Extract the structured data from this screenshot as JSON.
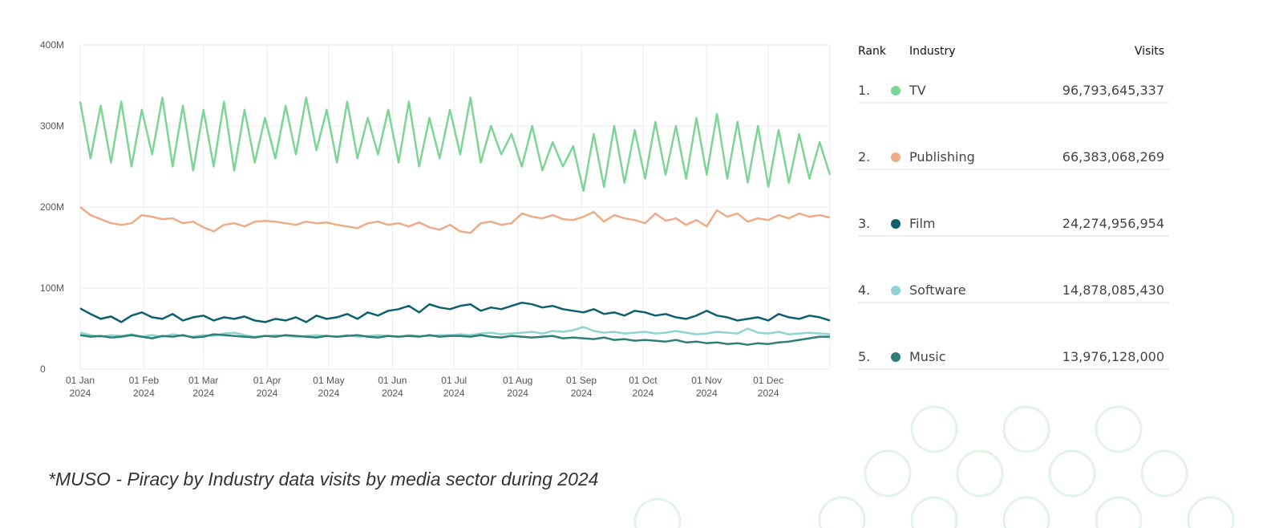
{
  "chart_data": {
    "type": "line",
    "x": [
      "2024-01-01",
      "2024-01-06",
      "2024-01-11",
      "2024-01-16",
      "2024-01-21",
      "2024-01-26",
      "2024-01-31",
      "2024-02-05",
      "2024-02-10",
      "2024-02-15",
      "2024-02-20",
      "2024-02-25",
      "2024-03-01",
      "2024-03-06",
      "2024-03-11",
      "2024-03-16",
      "2024-03-21",
      "2024-03-26",
      "2024-03-31",
      "2024-04-05",
      "2024-04-10",
      "2024-04-15",
      "2024-04-20",
      "2024-04-25",
      "2024-04-30",
      "2024-05-05",
      "2024-05-10",
      "2024-05-15",
      "2024-05-20",
      "2024-05-25",
      "2024-05-30",
      "2024-06-04",
      "2024-06-09",
      "2024-06-14",
      "2024-06-19",
      "2024-06-24",
      "2024-06-29",
      "2024-07-04",
      "2024-07-09",
      "2024-07-14",
      "2024-07-19",
      "2024-07-24",
      "2024-07-29",
      "2024-08-03",
      "2024-08-08",
      "2024-08-13",
      "2024-08-18",
      "2024-08-23",
      "2024-08-28",
      "2024-09-02",
      "2024-09-07",
      "2024-09-12",
      "2024-09-17",
      "2024-09-22",
      "2024-09-27",
      "2024-10-02",
      "2024-10-07",
      "2024-10-12",
      "2024-10-17",
      "2024-10-22",
      "2024-10-27",
      "2024-11-01",
      "2024-11-06",
      "2024-11-11",
      "2024-11-16",
      "2024-11-21",
      "2024-11-26",
      "2024-12-01",
      "2024-12-06",
      "2024-12-11",
      "2024-12-16",
      "2024-12-21",
      "2024-12-26",
      "2024-12-31"
    ],
    "xlim": [
      "2024-01-01",
      "2024-12-31"
    ],
    "xticks": [
      {
        "value": "2024-01-01",
        "label": [
          "01 Jan",
          "2024"
        ]
      },
      {
        "value": "2024-02-01",
        "label": [
          "01 Feb",
          "2024"
        ]
      },
      {
        "value": "2024-03-01",
        "label": [
          "01 Mar",
          "2024"
        ]
      },
      {
        "value": "2024-04-01",
        "label": [
          "01 Apr",
          "2024"
        ]
      },
      {
        "value": "2024-05-01",
        "label": [
          "01 May",
          "2024"
        ]
      },
      {
        "value": "2024-06-01",
        "label": [
          "01 Jun",
          "2024"
        ]
      },
      {
        "value": "2024-07-01",
        "label": [
          "01 Jul",
          "2024"
        ]
      },
      {
        "value": "2024-08-01",
        "label": [
          "01 Aug",
          "2024"
        ]
      },
      {
        "value": "2024-09-01",
        "label": [
          "01 Sep",
          "2024"
        ]
      },
      {
        "value": "2024-10-01",
        "label": [
          "01 Oct",
          "2024"
        ]
      },
      {
        "value": "2024-11-01",
        "label": [
          "01 Nov",
          "2024"
        ]
      },
      {
        "value": "2024-12-01",
        "label": [
          "01 Dec",
          "2024"
        ]
      }
    ],
    "ylim": [
      0,
      400000000
    ],
    "yticks": [
      0,
      {
        "value": 100000000,
        "label": "100M"
      },
      {
        "value": 200000000,
        "label": "200M"
      },
      {
        "value": 300000000,
        "label": "300M"
      },
      {
        "value": 400000000,
        "label": "400M"
      }
    ],
    "grid": true,
    "series": [
      {
        "name": "TV",
        "color": "#7dd595",
        "values": [
          330000000.0,
          260000000.0,
          325000000.0,
          255000000.0,
          330000000.0,
          250000000.0,
          320000000.0,
          265000000.0,
          335000000.0,
          250000000.0,
          325000000.0,
          245000000.0,
          320000000.0,
          250000000.0,
          330000000.0,
          245000000.0,
          320000000.0,
          255000000.0,
          310000000.0,
          260000000.0,
          325000000.0,
          265000000.0,
          335000000.0,
          270000000.0,
          320000000.0,
          255000000.0,
          330000000.0,
          260000000.0,
          310000000.0,
          265000000.0,
          320000000.0,
          255000000.0,
          330000000.0,
          250000000.0,
          310000000.0,
          260000000.0,
          320000000.0,
          265000000.0,
          335000000.0,
          255000000.0,
          300000000.0,
          265000000.0,
          290000000.0,
          250000000.0,
          300000000.0,
          245000000.0,
          280000000.0,
          250000000.0,
          275000000.0,
          220000000.0,
          290000000.0,
          225000000.0,
          300000000.0,
          230000000.0,
          295000000.0,
          235000000.0,
          305000000.0,
          240000000.0,
          300000000.0,
          235000000.0,
          310000000.0,
          240000000.0,
          315000000.0,
          235000000.0,
          305000000.0,
          230000000.0,
          300000000.0,
          225000000.0,
          295000000.0,
          230000000.0,
          290000000.0,
          235000000.0,
          280000000.0,
          240000000.0
        ]
      },
      {
        "name": "Publishing",
        "color": "#eeab87",
        "values": [
          200000000.0,
          190000000.0,
          185000000.0,
          180000000.0,
          178000000.0,
          180000000.0,
          190000000.0,
          188000000.0,
          185000000.0,
          186000000.0,
          180000000.0,
          182000000.0,
          175000000.0,
          170000000.0,
          178000000.0,
          180000000.0,
          176000000.0,
          182000000.0,
          183000000.0,
          182000000.0,
          180000000.0,
          178000000.0,
          182000000.0,
          180000000.0,
          181000000.0,
          178000000.0,
          176000000.0,
          174000000.0,
          180000000.0,
          182000000.0,
          178000000.0,
          180000000.0,
          176000000.0,
          181000000.0,
          175000000.0,
          172000000.0,
          178000000.0,
          170000000.0,
          168000000.0,
          180000000.0,
          182000000.0,
          178000000.0,
          180000000.0,
          192000000.0,
          188000000.0,
          186000000.0,
          190000000.0,
          185000000.0,
          184000000.0,
          188000000.0,
          194000000.0,
          182000000.0,
          190000000.0,
          186000000.0,
          184000000.0,
          180000000.0,
          192000000.0,
          183000000.0,
          186000000.0,
          178000000.0,
          184000000.0,
          176000000.0,
          196000000.0,
          188000000.0,
          192000000.0,
          182000000.0,
          186000000.0,
          184000000.0,
          190000000.0,
          186000000.0,
          192000000.0,
          188000000.0,
          190000000.0,
          187000000.0
        ]
      },
      {
        "name": "Film",
        "color": "#0d5f6f",
        "values": [
          75000000.0,
          68000000.0,
          62000000.0,
          65000000.0,
          58000000.0,
          66000000.0,
          70000000.0,
          64000000.0,
          62000000.0,
          68000000.0,
          60000000.0,
          64000000.0,
          66000000.0,
          60000000.0,
          64000000.0,
          62000000.0,
          65000000.0,
          60000000.0,
          58000000.0,
          62000000.0,
          60000000.0,
          64000000.0,
          58000000.0,
          66000000.0,
          62000000.0,
          64000000.0,
          68000000.0,
          62000000.0,
          70000000.0,
          66000000.0,
          72000000.0,
          74000000.0,
          78000000.0,
          70000000.0,
          80000000.0,
          76000000.0,
          74000000.0,
          78000000.0,
          80000000.0,
          72000000.0,
          76000000.0,
          74000000.0,
          78000000.0,
          82000000.0,
          80000000.0,
          76000000.0,
          78000000.0,
          74000000.0,
          72000000.0,
          70000000.0,
          74000000.0,
          68000000.0,
          70000000.0,
          66000000.0,
          72000000.0,
          70000000.0,
          66000000.0,
          68000000.0,
          64000000.0,
          62000000.0,
          66000000.0,
          72000000.0,
          66000000.0,
          64000000.0,
          60000000.0,
          62000000.0,
          64000000.0,
          60000000.0,
          68000000.0,
          64000000.0,
          62000000.0,
          66000000.0,
          64000000.0,
          60000000.0
        ]
      },
      {
        "name": "Software",
        "color": "#8fd4d2",
        "values": [
          45000000.0,
          42000000.0,
          40000000.0,
          42000000.0,
          41000000.0,
          43000000.0,
          40000000.0,
          42000000.0,
          40000000.0,
          43000000.0,
          41000000.0,
          40000000.0,
          42000000.0,
          41000000.0,
          44000000.0,
          45000000.0,
          42000000.0,
          40000000.0,
          41000000.0,
          42000000.0,
          41000000.0,
          40000000.0,
          41000000.0,
          42000000.0,
          41000000.0,
          40000000.0,
          42000000.0,
          40000000.0,
          41000000.0,
          42000000.0,
          41000000.0,
          40000000.0,
          42000000.0,
          41000000.0,
          41000000.0,
          42000000.0,
          42000000.0,
          43000000.0,
          42000000.0,
          44000000.0,
          45000000.0,
          43000000.0,
          44000000.0,
          45000000.0,
          46000000.0,
          44000000.0,
          47000000.0,
          46000000.0,
          48000000.0,
          52000000.0,
          47000000.0,
          45000000.0,
          46000000.0,
          44000000.0,
          45000000.0,
          46000000.0,
          44000000.0,
          45000000.0,
          47000000.0,
          45000000.0,
          43000000.0,
          44000000.0,
          46000000.0,
          45000000.0,
          44000000.0,
          50000000.0,
          45000000.0,
          44000000.0,
          46000000.0,
          43000000.0,
          44000000.0,
          45000000.0,
          44000000.0,
          43000000.0
        ]
      },
      {
        "name": "Music",
        "color": "#2e7f78",
        "values": [
          42000000.0,
          40000000.0,
          41000000.0,
          39000000.0,
          40000000.0,
          42000000.0,
          40000000.0,
          38000000.0,
          41000000.0,
          40000000.0,
          42000000.0,
          39000000.0,
          40000000.0,
          43000000.0,
          42000000.0,
          41000000.0,
          40000000.0,
          39000000.0,
          41000000.0,
          40000000.0,
          42000000.0,
          41000000.0,
          40000000.0,
          39000000.0,
          41000000.0,
          40000000.0,
          41000000.0,
          42000000.0,
          40000000.0,
          39000000.0,
          41000000.0,
          40000000.0,
          41000000.0,
          40000000.0,
          42000000.0,
          40000000.0,
          41000000.0,
          41000000.0,
          40000000.0,
          42000000.0,
          40000000.0,
          39000000.0,
          41000000.0,
          40000000.0,
          39000000.0,
          40000000.0,
          41000000.0,
          38000000.0,
          39000000.0,
          38000000.0,
          37000000.0,
          39000000.0,
          36000000.0,
          37000000.0,
          35000000.0,
          36000000.0,
          35000000.0,
          34000000.0,
          36000000.0,
          33000000.0,
          34000000.0,
          32000000.0,
          33000000.0,
          31000000.0,
          32000000.0,
          30000000.0,
          32000000.0,
          31000000.0,
          33000000.0,
          34000000.0,
          36000000.0,
          38000000.0,
          40000000.0,
          40000000.0
        ]
      }
    ],
    "table": {
      "columns": [
        "Rank",
        "Industry",
        "Visits"
      ],
      "rows": [
        {
          "rank": "1.",
          "visits": "96,793,645,337"
        },
        {
          "rank": "2.",
          "visits": "66,383,068,269"
        },
        {
          "rank": "3.",
          "visits": "24,274,956,954"
        },
        {
          "rank": "4.",
          "visits": "14,878,085,430"
        },
        {
          "rank": "5.",
          "visits": "13,976,128,000"
        }
      ]
    },
    "caption": "*MUSO - Piracy by Industry data visits by media sector during 2024"
  }
}
